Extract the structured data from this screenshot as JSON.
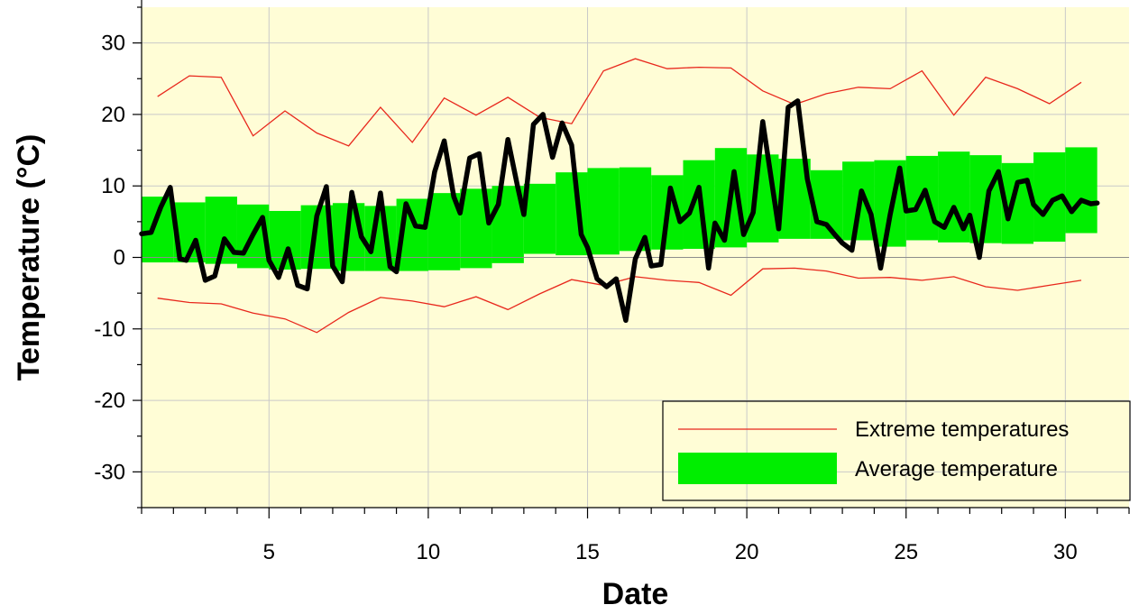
{
  "chart_data": {
    "type": "line",
    "title": "",
    "xlabel": "Date",
    "ylabel": "Temperature (°C)",
    "xlim": [
      1,
      32
    ],
    "ylim": [
      -35,
      35
    ],
    "xticks": [
      5,
      10,
      15,
      20,
      25,
      30
    ],
    "yticks": [
      -30,
      -20,
      -10,
      0,
      10,
      20,
      30
    ],
    "grid": true,
    "legend": {
      "position": "bottom-right",
      "entries": [
        {
          "label": "Extreme temperatures",
          "kind": "line",
          "color": "#e8271c"
        },
        {
          "label": "Average temperature",
          "kind": "band",
          "color": "#00ee00"
        }
      ]
    },
    "colors": {
      "plot_background": "#fffdd6",
      "grid": "#c9c9c9",
      "extreme": "#e8271c",
      "band": "#00ee00",
      "observed": "#000000"
    },
    "extreme_max": {
      "x": [
        1.5,
        2.5,
        3.5,
        4.5,
        5.5,
        6.5,
        7.5,
        8.5,
        9.5,
        10.5,
        11.5,
        12.5,
        13.5,
        14.5,
        15.5,
        16.5,
        17.5,
        18.5,
        19.5,
        20.5,
        21.5,
        22.5,
        23.5,
        24.5,
        25.5,
        26.5,
        27.5,
        28.5,
        29.5,
        30.5
      ],
      "y": [
        22.5,
        25.4,
        25.2,
        17.0,
        20.5,
        17.4,
        15.6,
        21.0,
        16.1,
        22.3,
        19.9,
        22.4,
        19.6,
        18.7,
        26.1,
        27.8,
        26.4,
        26.6,
        26.5,
        23.3,
        21.4,
        22.9,
        23.8,
        23.6,
        26.1,
        19.9,
        25.2,
        23.6,
        21.5,
        24.5
      ]
    },
    "extreme_min": {
      "x": [
        1.5,
        2.5,
        3.5,
        4.5,
        5.5,
        6.5,
        7.5,
        8.5,
        9.5,
        10.5,
        11.5,
        12.5,
        13.5,
        14.5,
        15.5,
        16.5,
        17.5,
        18.5,
        19.5,
        20.5,
        21.5,
        22.5,
        23.5,
        24.5,
        25.5,
        26.5,
        27.5,
        28.5,
        29.5,
        30.5
      ],
      "y": [
        -5.7,
        -6.3,
        -6.5,
        -7.8,
        -8.6,
        -10.5,
        -7.7,
        -5.6,
        -6.1,
        -6.9,
        -5.5,
        -7.3,
        -5.1,
        -3.1,
        -3.9,
        -2.7,
        -3.2,
        -3.5,
        -5.3,
        -1.6,
        -1.5,
        -1.9,
        -2.9,
        -2.8,
        -3.2,
        -2.7,
        -4.1,
        -4.6,
        -3.9,
        -3.2
      ]
    },
    "average_band": {
      "x_start": [
        1,
        2,
        3,
        4,
        5,
        6,
        7,
        8,
        9,
        10,
        11,
        12,
        13,
        14,
        15,
        16,
        17,
        18,
        19,
        20,
        21,
        22,
        23,
        24,
        25,
        26,
        27,
        28,
        29,
        30
      ],
      "low": [
        -0.7,
        -0.7,
        -0.9,
        -1.5,
        -1.7,
        -1.6,
        -1.9,
        -1.9,
        -1.9,
        -1.8,
        -1.5,
        -0.8,
        0.5,
        0.3,
        0.4,
        0.9,
        1.1,
        1.2,
        1.4,
        2.1,
        2.6,
        2.6,
        2.4,
        1.5,
        2.4,
        2.1,
        2.0,
        1.9,
        2.2,
        3.4
      ],
      "high": [
        8.5,
        7.7,
        8.5,
        7.4,
        6.5,
        7.3,
        7.6,
        7.2,
        8.2,
        9.0,
        9.6,
        10.0,
        10.3,
        11.9,
        12.5,
        12.6,
        11.5,
        13.6,
        15.3,
        14.4,
        13.8,
        12.2,
        13.4,
        13.6,
        14.2,
        14.8,
        14.3,
        13.2,
        14.7,
        15.4
      ]
    },
    "observed": {
      "x": [
        1.0,
        1.3,
        1.6,
        1.9,
        2.2,
        2.4,
        2.7,
        3.0,
        3.3,
        3.6,
        3.9,
        4.2,
        4.5,
        4.8,
        5.0,
        5.3,
        5.6,
        5.9,
        6.2,
        6.5,
        6.8,
        7.0,
        7.3,
        7.6,
        7.9,
        8.2,
        8.5,
        8.8,
        9.0,
        9.3,
        9.6,
        9.9,
        10.2,
        10.5,
        10.8,
        11.0,
        11.3,
        11.6,
        11.9,
        12.2,
        12.5,
        12.8,
        13.0,
        13.3,
        13.6,
        13.9,
        14.2,
        14.5,
        14.8,
        15.0,
        15.3,
        15.6,
        15.9,
        16.2,
        16.5,
        16.8,
        17.0,
        17.3,
        17.6,
        17.9,
        18.2,
        18.5,
        18.8,
        19.0,
        19.3,
        19.6,
        19.9,
        20.2,
        20.5,
        20.8,
        21.0,
        21.3,
        21.6,
        21.9,
        22.2,
        22.5,
        22.8,
        23.0,
        23.3,
        23.6,
        23.9,
        24.2,
        24.5,
        24.8,
        25.0,
        25.3,
        25.6,
        25.9,
        26.2,
        26.5,
        26.8,
        27.0,
        27.3,
        27.6,
        27.9,
        28.2,
        28.5,
        28.8,
        29.0,
        29.3,
        29.6,
        29.9,
        30.2,
        30.5,
        30.8,
        31.0
      ],
      "y": [
        3.3,
        3.5,
        7.0,
        9.8,
        -0.2,
        -0.4,
        2.4,
        -3.2,
        -2.6,
        2.6,
        0.7,
        0.6,
        3.2,
        5.6,
        -0.4,
        -2.8,
        1.2,
        -3.9,
        -4.4,
        5.8,
        9.9,
        -1.2,
        -3.4,
        9.1,
        2.9,
        0.8,
        9.0,
        -1.3,
        -2.0,
        7.5,
        4.4,
        4.2,
        12.0,
        16.3,
        8.5,
        6.2,
        13.9,
        14.5,
        4.8,
        7.4,
        16.5,
        10.0,
        6.0,
        18.6,
        20.0,
        14.0,
        18.8,
        15.7,
        3.2,
        1.4,
        -3.0,
        -4.1,
        -3.0,
        -8.8,
        -0.2,
        2.8,
        -1.2,
        -1.0,
        9.7,
        5.0,
        6.2,
        9.8,
        -1.5,
        4.8,
        2.4,
        12.0,
        3.2,
        6.3,
        19.0,
        10.0,
        4.0,
        21.0,
        21.9,
        11.0,
        5.0,
        4.6,
        3.0,
        2.0,
        1.0,
        9.3,
        6.0,
        -1.5,
        6.0,
        12.5,
        6.5,
        6.7,
        9.4,
        5.0,
        4.2,
        7.0,
        4.0,
        5.9,
        0.0,
        9.3,
        12.0,
        5.4,
        10.5,
        10.8,
        7.4,
        6.0,
        8.0,
        8.6,
        6.4,
        8.0,
        7.5,
        7.6
      ]
    }
  }
}
